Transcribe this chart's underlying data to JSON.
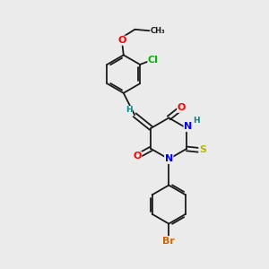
{
  "bg_color": "#ebebeb",
  "bond_color": "#1a1a1a",
  "atom_colors": {
    "O": "#ff0000",
    "N": "#0000ff",
    "S": "#b8b800",
    "Cl": "#00bb00",
    "Br": "#cc6600",
    "H": "#008888",
    "C": "#1a1a1a"
  },
  "font_size": 7.0,
  "bond_width": 1.3,
  "scale": 1.0
}
